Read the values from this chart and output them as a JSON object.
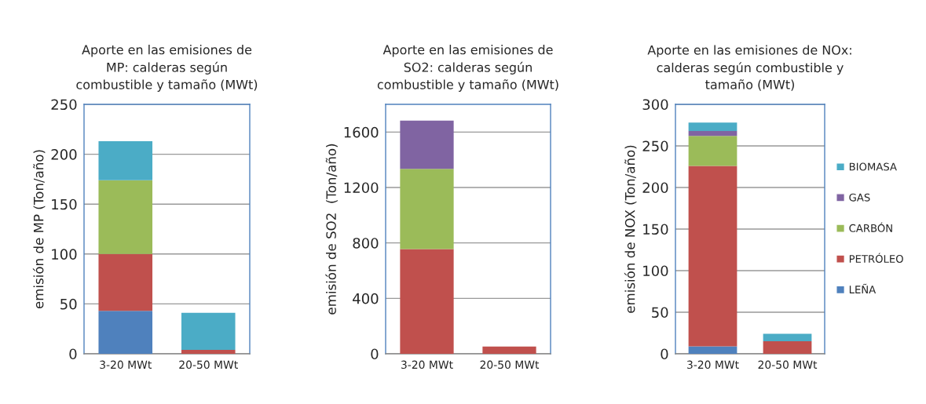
{
  "chart_data": [
    {
      "type": "bar",
      "stacked": true,
      "title": "Aporte en las emisiones de\nMP: calderas según\ncombustible y tamaño (MWt)",
      "ylabel": "emisión de MP (Ton/año)",
      "categories": [
        "3-20 MWt",
        "20-50 MWt"
      ],
      "ylim": [
        0,
        250
      ],
      "yticks": [
        0,
        50,
        100,
        150,
        200,
        250
      ],
      "grid": "y",
      "legend": false,
      "series": [
        {
          "color": "#4f81bd",
          "values": [
            43,
            null
          ]
        },
        {
          "color": "#c0504d",
          "values": [
            57,
            4
          ]
        },
        {
          "color": "#9bbb59",
          "values": [
            74,
            null
          ]
        },
        {
          "color": "#4bacc6",
          "values": [
            39,
            37
          ]
        }
      ]
    },
    {
      "type": "bar",
      "stacked": true,
      "title": "Aporte en las emisiones de\nSO2: calderas según\ncombustible y tamaño (MWt)",
      "ylabel": "emisión de SO2  (Ton/año)",
      "categories": [
        "3-20 MWt",
        "20-50 MWt"
      ],
      "ylim": [
        0,
        1800
      ],
      "yticks": [
        0,
        400,
        800,
        1200,
        1600
      ],
      "grid": "y",
      "legend": false,
      "series": [
        {
          "color": "#c0504d",
          "values": [
            756,
            53
          ]
        },
        {
          "color": "#9bbb59",
          "values": [
            579,
            null
          ]
        },
        {
          "color": "#8064a2",
          "values": [
            347,
            null
          ]
        }
      ]
    },
    {
      "type": "bar",
      "stacked": true,
      "title": "Aporte en las emisiones de NOx:\ncalderas según combustible y\ntamaño (MWt)",
      "ylabel": "emisión de NOX (Ton/año)",
      "categories": [
        "3-20 MWt",
        "20-50 MWt"
      ],
      "ylim": [
        0,
        300
      ],
      "yticks": [
        0,
        50,
        100,
        150,
        200,
        250,
        300
      ],
      "grid": "y",
      "legend": "right",
      "series": [
        {
          "name": "LEÑA",
          "color": "#4f81bd",
          "values": [
            9,
            null
          ]
        },
        {
          "name": "PETRÓLEO",
          "color": "#c0504d",
          "values": [
            217,
            15
          ]
        },
        {
          "name": "CARBÓN",
          "color": "#9bbb59",
          "values": [
            36,
            null
          ]
        },
        {
          "name": "GAS",
          "color": "#8064a2",
          "values": [
            6,
            null
          ]
        },
        {
          "name": "BIOMASA",
          "color": "#4bacc6",
          "values": [
            10,
            9
          ]
        }
      ]
    }
  ]
}
